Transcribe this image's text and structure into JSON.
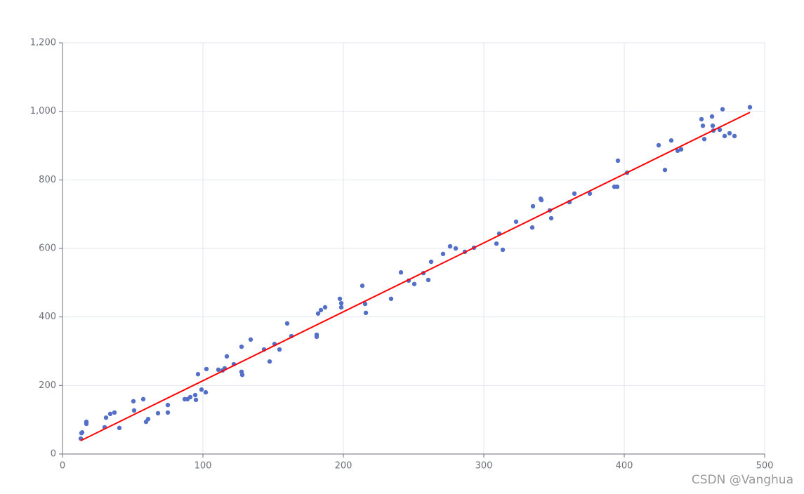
{
  "chart_data": {
    "type": "scatter",
    "xlim": [
      0,
      500
    ],
    "xticks": [
      0,
      100,
      200,
      300,
      400,
      500
    ],
    "ylim": [
      0,
      1200
    ],
    "yticks": [
      0,
      200,
      400,
      600,
      800,
      {
        "value": 1000,
        "label": "1,000"
      },
      {
        "value": 1200,
        "label": "1,200"
      }
    ],
    "grid": true,
    "watermark": "CSDN @Vanghua",
    "series": [
      {
        "type": "scatter",
        "color": "#5470c6",
        "x": [
          13,
          13.5,
          14,
          17,
          17,
          30,
          31,
          34,
          37,
          40.5,
          50.5,
          51,
          57.5,
          59.5,
          61,
          68,
          75,
          75,
          87,
          89,
          91,
          94.5,
          95,
          96.5,
          99,
          102,
          102.5,
          111,
          114,
          115.5,
          117,
          122,
          127.5,
          127.5,
          128,
          134,
          143.5,
          147.5,
          151,
          154.5,
          160,
          163,
          181,
          181,
          182,
          184,
          187,
          197.5,
          198.5,
          198.5,
          213.5,
          215.5,
          216,
          234,
          241,
          246.5,
          250.5,
          257,
          260.5,
          262.5,
          271,
          276,
          280,
          286.5,
          293,
          309,
          311,
          313.5,
          323,
          335,
          334.5,
          340.5,
          341,
          347,
          348,
          361,
          364.5,
          375.5,
          393,
          395,
          395.5,
          402,
          424.5,
          429,
          433.5,
          438,
          440.5,
          455,
          456,
          457,
          462.5,
          463,
          463.5,
          468,
          470,
          471.5,
          475,
          478.5,
          489.5
        ],
        "values": [
          45,
          61,
          63,
          94,
          88,
          78,
          106,
          117,
          121,
          76,
          154,
          127,
          160,
          94,
          102,
          119,
          143,
          121,
          160,
          160,
          166,
          172,
          158,
          233,
          188,
          180,
          248,
          246,
          244,
          250,
          285,
          262,
          313,
          240,
          231,
          334,
          305,
          270,
          321,
          305,
          381,
          344,
          348,
          342,
          410,
          420,
          428,
          453,
          440,
          428,
          491,
          438,
          412,
          453,
          530,
          506,
          496,
          528,
          508,
          561,
          584,
          606,
          600,
          590,
          602,
          614,
          643,
          596,
          678,
          723,
          661,
          745,
          741,
          711,
          688,
          735,
          760,
          760,
          780,
          780,
          856,
          821,
          901,
          829,
          915,
          885,
          889,
          977,
          958,
          919,
          985,
          958,
          944,
          946,
          1006,
          928,
          936,
          928,
          1012
        ]
      },
      {
        "type": "line",
        "color": "#ff0000",
        "x": [
          13,
          489.5
        ],
        "values": [
          39,
          997
        ]
      }
    ]
  }
}
